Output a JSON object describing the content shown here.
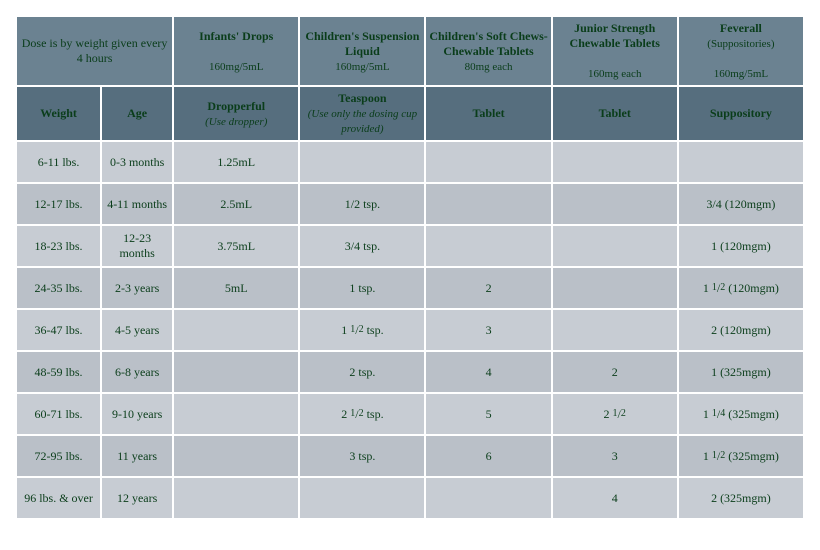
{
  "type": "table",
  "colors": {
    "header1_bg": "#6b8291",
    "header2_bg": "#566e7e",
    "row_a_bg": "#c7ccd3",
    "row_b_bg": "#bac0c8",
    "text": "#0a3d1a",
    "border": "#ffffff"
  },
  "typography": {
    "family": "Georgia",
    "header_size_pt": 12,
    "body_size_pt": 12,
    "sub_size_pt": 11
  },
  "header1": {
    "dose_note": "Dose is by weight given every 4 hours",
    "cols": [
      {
        "title": "Infants' Drops",
        "sub": "160mg/5mL"
      },
      {
        "title": "Children's Suspension Liquid",
        "sub": "160mg/5mL"
      },
      {
        "title": "Children's Soft Chews- Chewable Tablets",
        "sub": "80mg each"
      },
      {
        "title": "Junior Strength Chewable Tablets",
        "sub": "160mg each"
      },
      {
        "title": "Feverall",
        "paren": "(Suppositories)",
        "sub": "160mg/5mL"
      }
    ]
  },
  "header2": [
    {
      "t": "Weight"
    },
    {
      "t": "Age"
    },
    {
      "t": "Dropperful",
      "em": "(Use dropper)"
    },
    {
      "t": "Teaspoon",
      "em": "(Use only the dosing cup provided)"
    },
    {
      "t": "Tablet"
    },
    {
      "t": "Tablet"
    },
    {
      "t": "Suppository"
    }
  ],
  "rows": [
    {
      "wt": "6-11 lbs.",
      "age": "0-3 months",
      "c": [
        "1.25mL",
        "",
        "",
        "",
        ""
      ]
    },
    {
      "wt": "12-17 lbs.",
      "age": "4-11 months",
      "c": [
        "2.5mL",
        "1/2 tsp.",
        "",
        "",
        "3/4 (120mgm)"
      ]
    },
    {
      "wt": "18-23 lbs.",
      "age": "12-23 months",
      "c": [
        "3.75mL",
        "3/4 tsp.",
        "",
        "",
        "1 (120mgm)"
      ]
    },
    {
      "wt": "24-35 lbs.",
      "age": "2-3 years",
      "c": [
        "5mL",
        "1 tsp.",
        "2",
        "",
        "1 ½ (120mgm)"
      ]
    },
    {
      "wt": "36-47 lbs.",
      "age": "4-5 years",
      "c": [
        "",
        "1 ½ tsp.",
        "3",
        "",
        "2 (120mgm)"
      ]
    },
    {
      "wt": "48-59 lbs.",
      "age": "6-8 years",
      "c": [
        "",
        "2 tsp.",
        "4",
        "2",
        "1 (325mgm)"
      ]
    },
    {
      "wt": "60-71 lbs.",
      "age": "9-10 years",
      "c": [
        "",
        "2 ½ tsp.",
        "5",
        "2 ½",
        "1 ¼ (325mgm)"
      ]
    },
    {
      "wt": "72-95 lbs.",
      "age": "11 years",
      "c": [
        "",
        "3 tsp.",
        "6",
        "3",
        "1 ½ (325mgm)"
      ]
    },
    {
      "wt": "96 lbs. & over",
      "age": "12 years",
      "c": [
        "",
        "",
        "",
        "4",
        "2 (325mgm)"
      ]
    }
  ]
}
